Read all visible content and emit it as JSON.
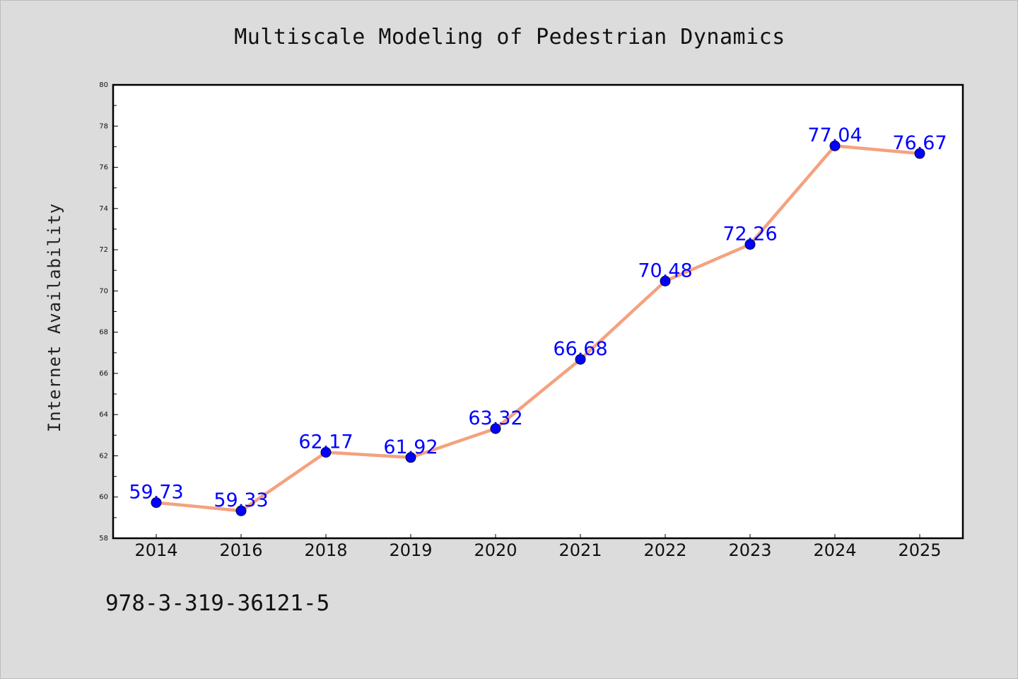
{
  "chart_data": {
    "type": "line",
    "title": "Multiscale Modeling of Pedestrian Dynamics",
    "xlabel": "",
    "ylabel": "Internet Availability",
    "categories": [
      "2014",
      "2016",
      "2018",
      "2019",
      "2020",
      "2021",
      "2022",
      "2023",
      "2024",
      "2025"
    ],
    "series": [
      {
        "values": [
          59.73,
          59.33,
          62.17,
          61.92,
          63.32,
          66.68,
          70.48,
          72.26,
          77.04,
          76.67
        ],
        "data_labels": [
          "59.73",
          "59.33",
          "62.17",
          "61.92",
          "63.32",
          "66.68",
          "70.48",
          "72.26",
          "77.04",
          "76.67"
        ]
      }
    ],
    "ylim": [
      58,
      80
    ],
    "yticks": [
      "58",
      "60",
      "62",
      "64",
      "66",
      "68",
      "70",
      "72",
      "74",
      "76",
      "78",
      "80"
    ],
    "grid": false,
    "legend": "none",
    "colors": {
      "line": "#f4a27f",
      "marker": "#0000ff",
      "data_label": "#0000ff",
      "plot_background": "#ffffff",
      "figure_background": "#dcdcdc"
    }
  },
  "footer": {
    "identifier": "978-3-319-36121-5"
  }
}
